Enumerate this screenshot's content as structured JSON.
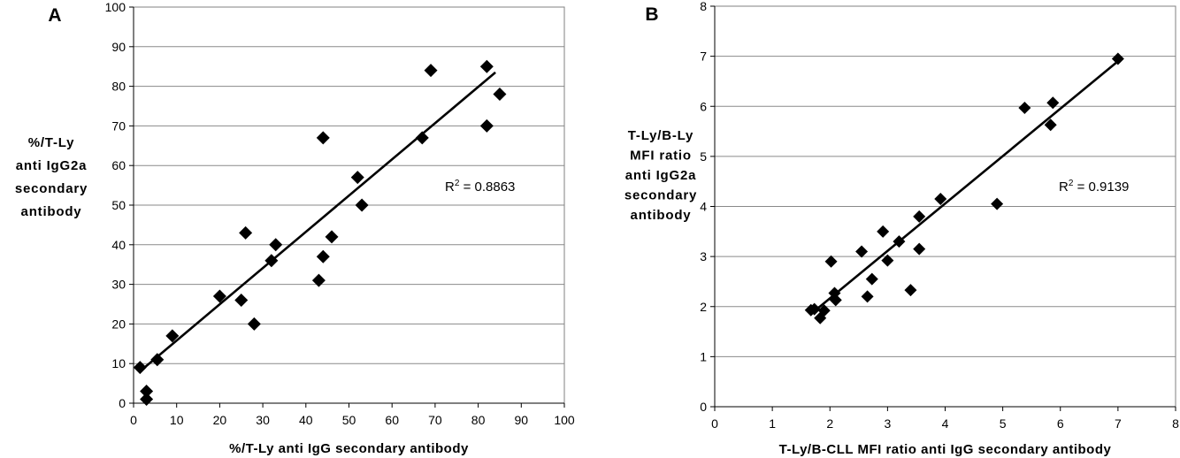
{
  "chart_data": [
    {
      "panel": "A",
      "type": "scatter",
      "xlabel": "%/T-Ly anti IgG secondary antibody",
      "ylabel": [
        "%/T-Ly",
        "anti IgG2a",
        "secondary",
        "antibody"
      ],
      "xlim": [
        0,
        100
      ],
      "ylim": [
        0,
        100
      ],
      "xticks": [
        0,
        10,
        20,
        30,
        40,
        50,
        60,
        70,
        80,
        90,
        100
      ],
      "yticks": [
        0,
        10,
        20,
        30,
        40,
        50,
        60,
        70,
        80,
        90,
        100
      ],
      "grid": "horizontal",
      "marker": "diamond",
      "points": [
        {
          "x": 1.5,
          "y": 9
        },
        {
          "x": 3,
          "y": 3
        },
        {
          "x": 3,
          "y": 1
        },
        {
          "x": 5.5,
          "y": 11
        },
        {
          "x": 9,
          "y": 17
        },
        {
          "x": 20,
          "y": 27
        },
        {
          "x": 25,
          "y": 26
        },
        {
          "x": 26,
          "y": 43
        },
        {
          "x": 28,
          "y": 20
        },
        {
          "x": 32,
          "y": 36
        },
        {
          "x": 33,
          "y": 40
        },
        {
          "x": 43,
          "y": 31
        },
        {
          "x": 44,
          "y": 37
        },
        {
          "x": 44,
          "y": 67
        },
        {
          "x": 46,
          "y": 42
        },
        {
          "x": 52,
          "y": 57
        },
        {
          "x": 53,
          "y": 50
        },
        {
          "x": 67,
          "y": 67
        },
        {
          "x": 69,
          "y": 84
        },
        {
          "x": 82,
          "y": 85
        },
        {
          "x": 82,
          "y": 70
        },
        {
          "x": 85,
          "y": 78
        }
      ],
      "trendline": {
        "x": [
          2,
          84
        ],
        "y": [
          8.5,
          83.5
        ]
      },
      "r2": {
        "label": "R",
        "sup": "2",
        "text": " = 0.8863"
      }
    },
    {
      "panel": "B",
      "type": "scatter",
      "xlabel": "T-Ly/B-CLL MFI ratio anti IgG secondary antibody",
      "ylabel": [
        "T-Ly/B-Ly",
        "MFI ratio",
        "anti IgG2a",
        "secondary",
        "antibody"
      ],
      "xlim": [
        0,
        8
      ],
      "ylim": [
        0,
        8
      ],
      "xticks": [
        0,
        1,
        2,
        3,
        4,
        5,
        6,
        7,
        8
      ],
      "yticks": [
        0,
        1,
        2,
        3,
        4,
        5,
        6,
        7,
        8
      ],
      "grid": "horizontal",
      "marker": "diamond",
      "points": [
        {
          "x": 1.67,
          "y": 1.93
        },
        {
          "x": 1.73,
          "y": 1.95
        },
        {
          "x": 1.83,
          "y": 1.77
        },
        {
          "x": 1.9,
          "y": 1.92
        },
        {
          "x": 2.02,
          "y": 2.9
        },
        {
          "x": 2.08,
          "y": 2.27
        },
        {
          "x": 2.1,
          "y": 2.13
        },
        {
          "x": 2.55,
          "y": 3.1
        },
        {
          "x": 2.65,
          "y": 2.2
        },
        {
          "x": 2.73,
          "y": 2.55
        },
        {
          "x": 2.92,
          "y": 3.5
        },
        {
          "x": 3.0,
          "y": 2.92
        },
        {
          "x": 3.2,
          "y": 3.3
        },
        {
          "x": 3.4,
          "y": 2.33
        },
        {
          "x": 3.55,
          "y": 3.8
        },
        {
          "x": 3.55,
          "y": 3.15
        },
        {
          "x": 3.92,
          "y": 4.15
        },
        {
          "x": 4.9,
          "y": 4.05
        },
        {
          "x": 5.38,
          "y": 5.97
        },
        {
          "x": 5.83,
          "y": 5.63
        },
        {
          "x": 5.87,
          "y": 6.07
        },
        {
          "x": 7.0,
          "y": 6.95
        }
      ],
      "trendline": {
        "x": [
          1.7,
          7.0
        ],
        "y": [
          1.88,
          6.9
        ]
      },
      "r2": {
        "label": "R",
        "sup": "2",
        "text": " = 0.9139"
      }
    }
  ]
}
